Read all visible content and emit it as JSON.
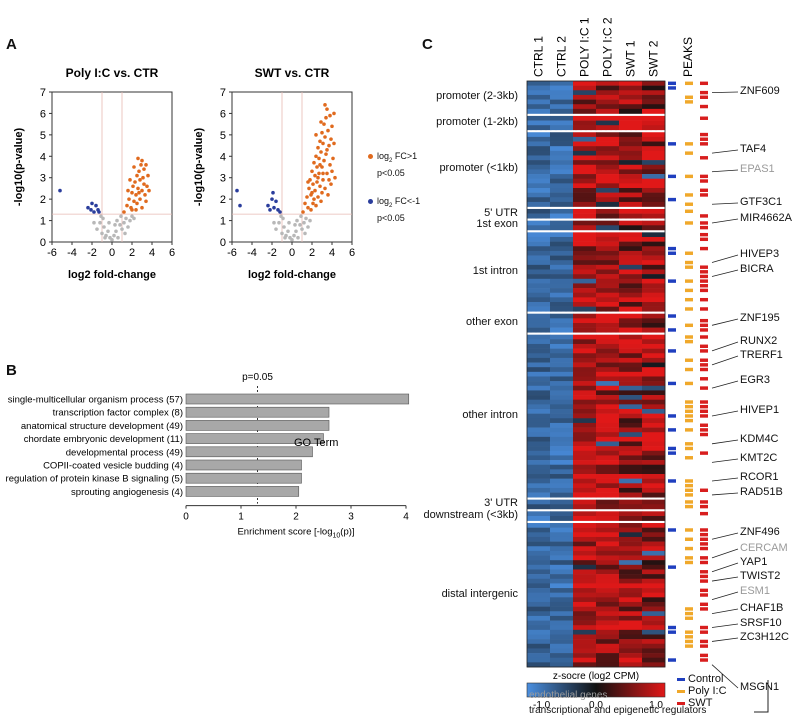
{
  "panels": {
    "a": "A",
    "b": "B",
    "c": "C"
  },
  "colors": {
    "up": "#e06a1e",
    "down": "#2a3d9c",
    "ns": "#b8b8b8",
    "control": "#1f3fbf",
    "polyic": "#f0a82a",
    "swt": "#d81e1e",
    "heat_low": "#4a8fe0",
    "heat_mid": "#111111",
    "heat_high": "#e01818",
    "endo_text": "#9a9a9a"
  },
  "chart_data": [
    {
      "type": "scatter",
      "title": "Poly I:C vs. CTR",
      "xlabel": "log2 fold-change",
      "ylabel": "-log10(p-value)",
      "xlim": [
        -6,
        6
      ],
      "ylim": [
        0,
        7
      ],
      "xticks": [
        "-6",
        "-4",
        "-2",
        "0",
        "2",
        "4",
        "6"
      ],
      "yticks": [
        "0",
        "1",
        "2",
        "3",
        "4",
        "5",
        "6",
        "7"
      ],
      "thresholds": {
        "fc": [
          -1,
          1
        ],
        "p": 1.3
      },
      "series": [
        {
          "name": "up",
          "points": [
            [
              1.2,
              1.4
            ],
            [
              1.5,
              1.7
            ],
            [
              1.7,
              2.0
            ],
            [
              1.9,
              1.6
            ],
            [
              2.0,
              2.3
            ],
            [
              2.1,
              2.6
            ],
            [
              2.2,
              1.9
            ],
            [
              2.3,
              2.8
            ],
            [
              2.4,
              2.2
            ],
            [
              2.5,
              3.1
            ],
            [
              2.5,
              1.8
            ],
            [
              2.6,
              2.5
            ],
            [
              2.7,
              3.3
            ],
            [
              2.8,
              2.0
            ],
            [
              2.8,
              2.9
            ],
            [
              2.9,
              3.6
            ],
            [
              3.0,
              2.4
            ],
            [
              3.0,
              1.6
            ],
            [
              3.1,
              3.0
            ],
            [
              3.2,
              2.7
            ],
            [
              3.2,
              3.4
            ],
            [
              3.3,
              2.2
            ],
            [
              3.4,
              1.9
            ],
            [
              3.5,
              2.6
            ],
            [
              3.6,
              3.1
            ],
            [
              2.2,
              3.5
            ],
            [
              2.6,
              3.9
            ],
            [
              3.0,
              3.8
            ],
            [
              1.8,
              2.9
            ],
            [
              2.0,
              1.5
            ],
            [
              2.4,
              1.5
            ],
            [
              3.7,
              2.4
            ],
            [
              3.4,
              3.6
            ],
            [
              2.7,
              2.3
            ],
            [
              1.6,
              2.4
            ]
          ]
        },
        {
          "name": "down",
          "points": [
            [
              -5.2,
              2.4
            ],
            [
              -2.4,
              1.6
            ],
            [
              -2.1,
              1.5
            ],
            [
              -1.8,
              1.4
            ],
            [
              -1.6,
              1.7
            ],
            [
              -1.4,
              1.5
            ],
            [
              -2.0,
              1.8
            ],
            [
              -1.3,
              1.4
            ]
          ]
        },
        {
          "name": "ns",
          "points": [
            [
              -1.5,
              0.6
            ],
            [
              -1.2,
              0.9
            ],
            [
              -1.0,
              0.4
            ],
            [
              -0.8,
              0.7
            ],
            [
              -0.6,
              0.3
            ],
            [
              -0.4,
              0.5
            ],
            [
              -0.2,
              0.2
            ],
            [
              0.0,
              0.1
            ],
            [
              0.2,
              0.3
            ],
            [
              0.4,
              0.5
            ],
            [
              0.6,
              0.2
            ],
            [
              0.8,
              0.8
            ],
            [
              1.0,
              0.6
            ],
            [
              1.2,
              0.9
            ],
            [
              1.4,
              1.1
            ],
            [
              1.6,
              0.7
            ],
            [
              1.8,
              1.0
            ],
            [
              2.0,
              1.2
            ],
            [
              -0.9,
              1.1
            ],
            [
              -1.1,
              1.2
            ],
            [
              0.5,
              1.0
            ],
            [
              0.9,
              1.2
            ],
            [
              -0.3,
              0.9
            ],
            [
              0.3,
              0.8
            ],
            [
              1.3,
              0.4
            ],
            [
              -0.7,
              0.2
            ],
            [
              2.2,
              1.1
            ],
            [
              -1.8,
              0.9
            ]
          ]
        }
      ]
    },
    {
      "type": "scatter",
      "title": "SWT vs. CTR",
      "xlabel": "log2 fold-change",
      "ylabel": "-log10(p-value)",
      "xlim": [
        -6,
        6
      ],
      "ylim": [
        0,
        7
      ],
      "xticks": [
        "-6",
        "-4",
        "-2",
        "0",
        "2",
        "4",
        "6"
      ],
      "yticks": [
        "0",
        "1",
        "2",
        "3",
        "4",
        "5",
        "6",
        "7"
      ],
      "thresholds": {
        "fc": [
          -1,
          1
        ],
        "p": 1.3
      },
      "series": [
        {
          "name": "up",
          "points": [
            [
              1.1,
              1.4
            ],
            [
              1.3,
              1.8
            ],
            [
              1.5,
              2.1
            ],
            [
              1.6,
              1.6
            ],
            [
              1.7,
              2.5
            ],
            [
              1.8,
              2.9
            ],
            [
              1.9,
              2.2
            ],
            [
              2.0,
              3.3
            ],
            [
              2.1,
              2.7
            ],
            [
              2.1,
              1.8
            ],
            [
              2.2,
              3.7
            ],
            [
              2.3,
              3.1
            ],
            [
              2.3,
              2.4
            ],
            [
              2.4,
              4.0
            ],
            [
              2.4,
              1.7
            ],
            [
              2.5,
              3.5
            ],
            [
              2.5,
              2.8
            ],
            [
              2.6,
              4.4
            ],
            [
              2.6,
              2.1
            ],
            [
              2.7,
              3.9
            ],
            [
              2.7,
              3.2
            ],
            [
              2.8,
              4.7
            ],
            [
              2.8,
              2.6
            ],
            [
              2.9,
              4.2
            ],
            [
              2.9,
              1.9
            ],
            [
              3.0,
              5.1
            ],
            [
              3.0,
              3.5
            ],
            [
              3.0,
              2.3
            ],
            [
              3.1,
              4.6
            ],
            [
              3.1,
              2.9
            ],
            [
              3.2,
              5.5
            ],
            [
              3.2,
              3.8
            ],
            [
              3.3,
              4.9
            ],
            [
              3.3,
              2.5
            ],
            [
              3.4,
              5.8
            ],
            [
              3.4,
              4.1
            ],
            [
              3.5,
              3.2
            ],
            [
              3.5,
              6.2
            ],
            [
              3.6,
              5.2
            ],
            [
              3.6,
              2.2
            ],
            [
              3.7,
              4.5
            ],
            [
              3.8,
              5.9
            ],
            [
              3.8,
              3.6
            ],
            [
              3.9,
              4.8
            ],
            [
              3.9,
              2.7
            ],
            [
              4.0,
              5.4
            ],
            [
              4.1,
              3.9
            ],
            [
              4.2,
              6.0
            ],
            [
              2.2,
              2.0
            ],
            [
              2.0,
              2.3
            ],
            [
              1.9,
              1.5
            ],
            [
              2.6,
              3.0
            ],
            [
              3.1,
              3.2
            ],
            [
              2.8,
              3.6
            ],
            [
              3.5,
              4.3
            ],
            [
              3.7,
              2.9
            ],
            [
              4.0,
              3.3
            ],
            [
              4.2,
              4.6
            ],
            [
              4.3,
              3.0
            ],
            [
              2.4,
              5.0
            ],
            [
              1.6,
              2.8
            ],
            [
              2.9,
              5.6
            ],
            [
              3.3,
              6.4
            ]
          ]
        },
        {
          "name": "down",
          "points": [
            [
              -5.5,
              2.4
            ],
            [
              -5.2,
              1.7
            ],
            [
              -2.4,
              1.7
            ],
            [
              -2.2,
              1.5
            ],
            [
              -2.0,
              2.0
            ],
            [
              -1.8,
              1.6
            ],
            [
              -1.6,
              1.9
            ],
            [
              -1.4,
              1.5
            ],
            [
              -1.9,
              2.3
            ],
            [
              -1.2,
              1.4
            ]
          ]
        },
        {
          "name": "ns",
          "points": [
            [
              -1.6,
              0.6
            ],
            [
              -1.3,
              0.9
            ],
            [
              -1.0,
              0.4
            ],
            [
              -0.8,
              0.7
            ],
            [
              -0.6,
              0.3
            ],
            [
              -0.4,
              0.5
            ],
            [
              -0.2,
              0.2
            ],
            [
              0.0,
              0.1
            ],
            [
              0.2,
              0.3
            ],
            [
              0.4,
              0.5
            ],
            [
              0.6,
              0.2
            ],
            [
              0.8,
              0.8
            ],
            [
              1.0,
              0.6
            ],
            [
              1.2,
              0.9
            ],
            [
              1.4,
              1.1
            ],
            [
              1.6,
              0.7
            ],
            [
              1.8,
              1.0
            ],
            [
              -0.9,
              1.1
            ],
            [
              -1.1,
              1.2
            ],
            [
              0.5,
              1.0
            ],
            [
              0.9,
              1.2
            ],
            [
              -0.3,
              0.9
            ],
            [
              0.3,
              0.8
            ],
            [
              1.3,
              0.4
            ],
            [
              -0.7,
              0.2
            ],
            [
              -1.8,
              0.9
            ]
          ]
        }
      ]
    },
    {
      "type": "bar",
      "orientation": "horizontal",
      "categories": [
        "single-multicellular organism process (57)",
        "transcription factor complex (8)",
        "anatomical structure development (49)",
        "chordate embryonic development (11)",
        "developmental process (49)",
        "COPII-coated vesicle budding (4)",
        "regulation of protein kinase B signaling (5)",
        "sprouting angiogenesis (4)"
      ],
      "values": [
        4.05,
        2.6,
        2.6,
        2.5,
        2.3,
        2.1,
        2.1,
        2.05
      ],
      "xlabel": "Enrichment score [-log",
      "xlabel_sub": "10",
      "xlabel_end": "(p)]",
      "xlim": [
        0,
        4
      ],
      "xticks": [
        "0",
        "1",
        "2",
        "3",
        "4"
      ],
      "reference_line": 1.3,
      "reference_label": "p=0.05",
      "legend": "GO Term"
    },
    {
      "type": "heatmap",
      "columns": [
        "CTRL 1",
        "CTRL 2",
        "POLY I:C 1",
        "POLY I:C 2",
        "SWT 1",
        "SWT 2"
      ],
      "peaks_header": "PEAKS",
      "colorbar_label": "z-socre (log2 CPM)",
      "colorbar_ticks": [
        "-1.0",
        "0.0",
        "1.0"
      ],
      "zlim": [
        -1,
        1
      ],
      "regions": [
        {
          "label": "promoter (2-3kb)",
          "rows": 7
        },
        {
          "label": "promoter (1-2kb)",
          "rows": 3
        },
        {
          "label": "promoter (<1kb)",
          "rows": 16
        },
        {
          "label": "5' UTR",
          "rows": 2
        },
        {
          "label": "1st exon",
          "rows": 2
        },
        {
          "label": "1st intron",
          "rows": 17
        },
        {
          "label": "other exon",
          "rows": 4
        },
        {
          "label": "other intron",
          "rows": 35
        },
        {
          "label": "3' UTR",
          "rows": 2
        },
        {
          "label": "downstream (<3kb)",
          "rows": 2
        },
        {
          "label": "distal intergenic",
          "rows": 31
        }
      ]
    }
  ],
  "volcano_legend": {
    "up_line1": "log",
    "up_sub": "2",
    "up_rest": " FC>1",
    "up_line2": "p<0.05",
    "down_line1": "log",
    "down_sub": "2",
    "down_rest": " FC<-1",
    "down_line2": "p<0.05"
  },
  "genes": [
    {
      "name": "ZNF609",
      "endothelial": false
    },
    {
      "name": "TAF4",
      "endothelial": false
    },
    {
      "name": "EPAS1",
      "endothelial": true
    },
    {
      "name": "GTF3C1",
      "endothelial": false
    },
    {
      "name": "MIR4662A",
      "endothelial": false
    },
    {
      "name": "HIVEP3",
      "endothelial": false
    },
    {
      "name": "BICRA",
      "endothelial": false
    },
    {
      "name": "ZNF195",
      "endothelial": false
    },
    {
      "name": "RUNX2",
      "endothelial": false
    },
    {
      "name": "TRERF1",
      "endothelial": false
    },
    {
      "name": "EGR3",
      "endothelial": false
    },
    {
      "name": "HIVEP1",
      "endothelial": false
    },
    {
      "name": "KDM4C",
      "endothelial": false
    },
    {
      "name": "KMT2C",
      "endothelial": false
    },
    {
      "name": "RCOR1",
      "endothelial": false
    },
    {
      "name": "RAD51B",
      "endothelial": false
    },
    {
      "name": "ZNF496",
      "endothelial": false
    },
    {
      "name": "CERCAM",
      "endothelial": true
    },
    {
      "name": "YAP1",
      "endothelial": false
    },
    {
      "name": "TWIST2",
      "endothelial": false
    },
    {
      "name": "ESM1",
      "endothelial": true
    },
    {
      "name": "CHAF1B",
      "endothelial": false
    },
    {
      "name": "SRSF10",
      "endothelial": false
    },
    {
      "name": "ZC3H12C",
      "endothelial": false
    },
    {
      "name": "MSGN1",
      "endothelial": false
    }
  ],
  "peaks_legend": [
    "Control",
    "Poly I:C",
    "SWT"
  ],
  "bottom_legend": {
    "endothelial": "endothelial genes",
    "regulators": "transcriptional and epigenetic regulators"
  }
}
